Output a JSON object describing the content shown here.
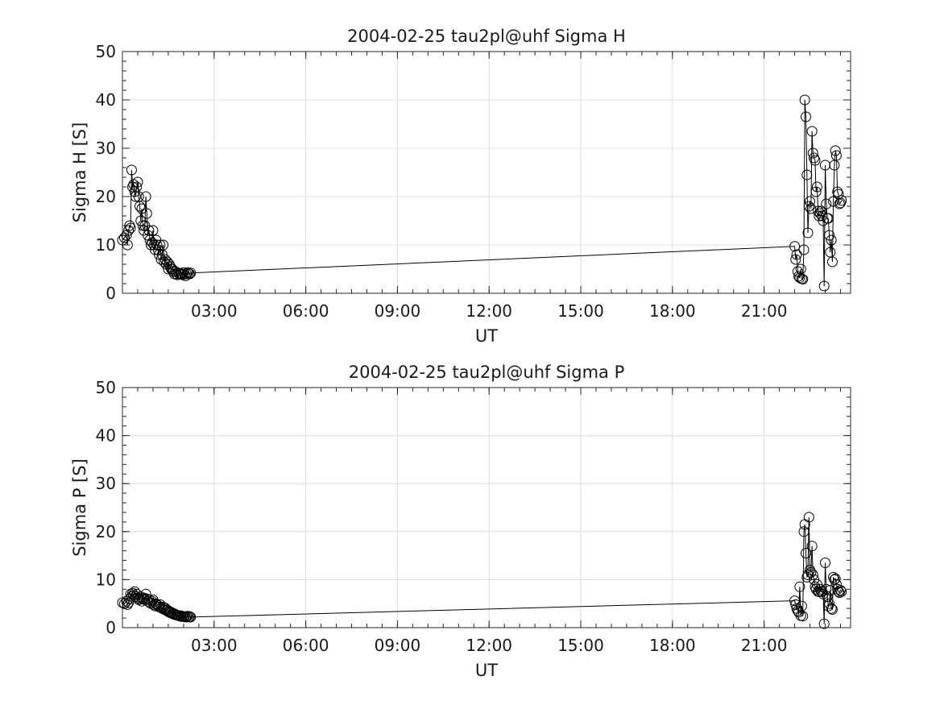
{
  "chart_data": [
    {
      "type": "line",
      "title": "2004-02-25  tau2pl@uhf Sigma H",
      "xlabel": "UT",
      "ylabel": "Sigma H [S]",
      "ylim": [
        0,
        50
      ],
      "yticks": [
        "0",
        "10",
        "20",
        "30",
        "40",
        "50"
      ],
      "xlim_hours": [
        0,
        23.83
      ],
      "xticks": [
        "03:00",
        "06:00",
        "09:00",
        "12:00",
        "15:00",
        "18:00",
        "21:00"
      ],
      "grid": true,
      "marker": "open-circle",
      "series": [
        {
          "x": [
            "00:00",
            "00:04",
            "00:08",
            "00:10",
            "00:12",
            "00:14",
            "00:16",
            "00:18",
            "00:20",
            "00:22",
            "00:24",
            "00:26",
            "00:28",
            "00:30",
            "00:32",
            "00:34",
            "00:36",
            "00:38",
            "00:40",
            "00:42",
            "00:44",
            "00:46",
            "00:48",
            "00:50",
            "00:52",
            "00:54",
            "00:56",
            "00:58",
            "01:00",
            "01:02",
            "01:04",
            "01:06",
            "01:08",
            "01:10",
            "01:12",
            "01:14",
            "01:16",
            "01:18",
            "01:20",
            "01:22",
            "01:24",
            "01:26",
            "01:28",
            "01:30",
            "01:32",
            "01:34",
            "01:36",
            "01:38",
            "01:40",
            "01:42",
            "01:44",
            "01:46",
            "01:48",
            "01:50",
            "01:52",
            "01:54",
            "01:56",
            "01:58",
            "02:00",
            "02:02",
            "02:04",
            "02:06",
            "02:08",
            "02:10",
            "02:12",
            "02:14",
            "22:00",
            "22:02",
            "22:04",
            "22:06",
            "22:08",
            "22:10",
            "22:12",
            "22:14",
            "22:16",
            "22:18",
            "22:20",
            "22:22",
            "22:24",
            "22:26",
            "22:28",
            "22:30",
            "22:32",
            "22:34",
            "22:36",
            "22:38",
            "22:40",
            "22:42",
            "22:44",
            "22:46",
            "22:48",
            "22:50",
            "22:52",
            "22:54",
            "22:56",
            "22:58",
            "23:00",
            "23:02",
            "23:04",
            "23:06",
            "23:08",
            "23:10",
            "23:12",
            "23:14",
            "23:16",
            "23:18",
            "23:20",
            "23:22",
            "23:24",
            "23:26",
            "23:28",
            "23:30",
            "23:32"
          ],
          "y": [
            11,
            11.5,
            12,
            10,
            13,
            14,
            13.5,
            25.5,
            22,
            22.5,
            21,
            20,
            22,
            23,
            20,
            18,
            15,
            17.5,
            14,
            13,
            14,
            20,
            16.5,
            12,
            13,
            11,
            10,
            10.5,
            13,
            10,
            9,
            11,
            10,
            9,
            8,
            10,
            7,
            8,
            10,
            6.5,
            7,
            6,
            6.5,
            5,
            6,
            5.5,
            5,
            5,
            4.5,
            4,
            4.5,
            4,
            3.8,
            4.2,
            4,
            4.1,
            4,
            3.8,
            4.3,
            4,
            3.6,
            4,
            4.3,
            4.1,
            4,
            4.2,
            9.7,
            7,
            8,
            4.5,
            3.5,
            3.2,
            5,
            3,
            2.9,
            9,
            40,
            36.5,
            24.5,
            12.5,
            18,
            19,
            17.5,
            33.5,
            29,
            28,
            27.5,
            21,
            22,
            17,
            16,
            16.5,
            17,
            16,
            15,
            1.5,
            26.5,
            18.5,
            15.5,
            15.5,
            12,
            8.5,
            11,
            6.5,
            19,
            26.5,
            29.5,
            28.5,
            21,
            20.5,
            18.5,
            18.7,
            19.2
          ]
        }
      ]
    },
    {
      "type": "line",
      "title": "2004-02-25  tau2pl@uhf Sigma P",
      "xlabel": "UT",
      "ylabel": "Sigma P [S]",
      "ylim": [
        0,
        50
      ],
      "yticks": [
        "0",
        "10",
        "20",
        "30",
        "40",
        "50"
      ],
      "xlim_hours": [
        0,
        23.83
      ],
      "xticks": [
        "03:00",
        "06:00",
        "09:00",
        "12:00",
        "15:00",
        "18:00",
        "21:00"
      ],
      "grid": true,
      "marker": "open-circle",
      "series": [
        {
          "x": [
            "00:00",
            "00:04",
            "00:08",
            "00:10",
            "00:12",
            "00:14",
            "00:16",
            "00:18",
            "00:20",
            "00:22",
            "00:24",
            "00:26",
            "00:28",
            "00:30",
            "00:32",
            "00:34",
            "00:36",
            "00:38",
            "00:40",
            "00:42",
            "00:44",
            "00:46",
            "00:48",
            "00:50",
            "00:52",
            "00:54",
            "00:56",
            "00:58",
            "01:00",
            "01:02",
            "01:04",
            "01:06",
            "01:08",
            "01:10",
            "01:12",
            "01:14",
            "01:16",
            "01:18",
            "01:20",
            "01:22",
            "01:24",
            "01:26",
            "01:28",
            "01:30",
            "01:32",
            "01:34",
            "01:36",
            "01:38",
            "01:40",
            "01:42",
            "01:44",
            "01:46",
            "01:48",
            "01:50",
            "01:52",
            "01:54",
            "01:56",
            "01:58",
            "02:00",
            "02:02",
            "02:04",
            "02:06",
            "02:08",
            "02:10",
            "02:12",
            "02:14",
            "22:00",
            "22:02",
            "22:04",
            "22:06",
            "22:08",
            "22:10",
            "22:12",
            "22:14",
            "22:16",
            "22:18",
            "22:20",
            "22:22",
            "22:24",
            "22:26",
            "22:28",
            "22:30",
            "22:32",
            "22:34",
            "22:36",
            "22:38",
            "22:40",
            "22:42",
            "22:44",
            "22:46",
            "22:48",
            "22:50",
            "22:52",
            "22:54",
            "22:56",
            "22:58",
            "23:00",
            "23:02",
            "23:04",
            "23:06",
            "23:08",
            "23:10",
            "23:12",
            "23:14",
            "23:16",
            "23:18",
            "23:20",
            "23:22",
            "23:24",
            "23:26",
            "23:28",
            "23:30",
            "23:32"
          ],
          "y": [
            5.2,
            5,
            5.5,
            4.8,
            5.2,
            6,
            7,
            6.5,
            7.2,
            6.8,
            7.5,
            6.5,
            7,
            6.2,
            5.8,
            6,
            6.4,
            5.5,
            6,
            6.2,
            5.8,
            7,
            6,
            5.5,
            5.8,
            5.2,
            5,
            5.5,
            5.8,
            4.8,
            4.5,
            5,
            4.8,
            4.6,
            4.3,
            4.8,
            4.2,
            4,
            4.3,
            3.8,
            4.1,
            3.6,
            3.7,
            3.3,
            3.4,
            3.1,
            3.2,
            3,
            2.8,
            2.9,
            2.7,
            2.6,
            2.6,
            2.5,
            2.4,
            2.5,
            2.3,
            2.4,
            2.3,
            2.3,
            2.2,
            2.3,
            2.4,
            2.2,
            2.3,
            2.2,
            5.6,
            4.8,
            4,
            3.5,
            3.2,
            8.5,
            2.5,
            4.5,
            2.4,
            20,
            21.5,
            15.5,
            10.5,
            11,
            23,
            12,
            11.5,
            17,
            11,
            10,
            8.5,
            8,
            9,
            7.5,
            7.5,
            8,
            7.5,
            7.5,
            7,
            0.8,
            13.5,
            8,
            6.5,
            4.5,
            5,
            7.8,
            4,
            3.8,
            10.5,
            10,
            10.2,
            9,
            8,
            7.5,
            7.3,
            7.8,
            7.5
          ]
        }
      ]
    }
  ]
}
